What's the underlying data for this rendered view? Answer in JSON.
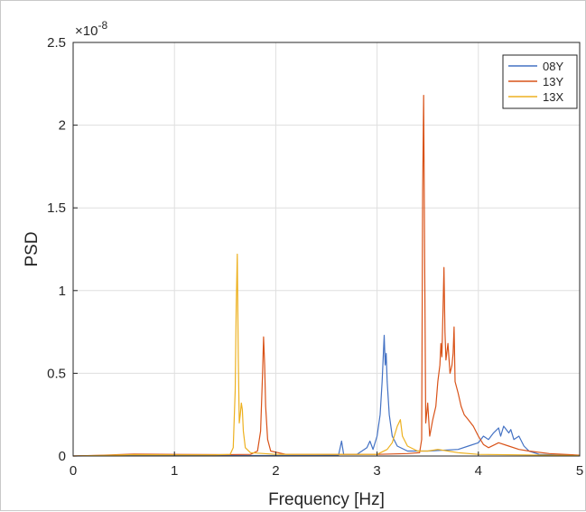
{
  "chart_data": {
    "type": "line",
    "title": "",
    "xlabel": "Frequency [Hz]",
    "ylabel": "PSD",
    "exponent_base": "×10",
    "exponent_power": "-8",
    "xlim": [
      0,
      5
    ],
    "ylim": [
      0,
      2.5
    ],
    "x_ticks": [
      "0",
      "1",
      "2",
      "3",
      "4",
      "5"
    ],
    "y_ticks": [
      "0",
      "0.5",
      "1",
      "1.5",
      "2",
      "2.5"
    ],
    "grid": true,
    "legend_position": "top-right",
    "series": [
      {
        "name": "08Y",
        "color": "#4472c4",
        "points": [
          [
            0.0,
            0.0
          ],
          [
            0.3,
            0.002
          ],
          [
            0.6,
            0.004
          ],
          [
            1.0,
            0.003
          ],
          [
            1.5,
            0.003
          ],
          [
            2.0,
            0.003
          ],
          [
            2.4,
            0.004
          ],
          [
            2.62,
            0.006
          ],
          [
            2.65,
            0.09
          ],
          [
            2.67,
            0.01
          ],
          [
            2.8,
            0.01
          ],
          [
            2.9,
            0.05
          ],
          [
            2.93,
            0.09
          ],
          [
            2.96,
            0.04
          ],
          [
            3.0,
            0.12
          ],
          [
            3.03,
            0.25
          ],
          [
            3.05,
            0.45
          ],
          [
            3.07,
            0.73
          ],
          [
            3.08,
            0.55
          ],
          [
            3.09,
            0.62
          ],
          [
            3.1,
            0.45
          ],
          [
            3.12,
            0.25
          ],
          [
            3.15,
            0.12
          ],
          [
            3.2,
            0.06
          ],
          [
            3.3,
            0.03
          ],
          [
            3.5,
            0.03
          ],
          [
            3.8,
            0.04
          ],
          [
            3.9,
            0.06
          ],
          [
            4.0,
            0.08
          ],
          [
            4.05,
            0.12
          ],
          [
            4.1,
            0.1
          ],
          [
            4.15,
            0.14
          ],
          [
            4.2,
            0.17
          ],
          [
            4.22,
            0.12
          ],
          [
            4.25,
            0.18
          ],
          [
            4.3,
            0.14
          ],
          [
            4.32,
            0.16
          ],
          [
            4.35,
            0.1
          ],
          [
            4.4,
            0.12
          ],
          [
            4.45,
            0.06
          ],
          [
            4.5,
            0.03
          ],
          [
            4.6,
            0.01
          ],
          [
            5.0,
            0.003
          ]
        ]
      },
      {
        "name": "13Y",
        "color": "#d95319",
        "points": [
          [
            0.0,
            0.0
          ],
          [
            0.3,
            0.005
          ],
          [
            0.6,
            0.012
          ],
          [
            1.0,
            0.01
          ],
          [
            1.5,
            0.008
          ],
          [
            1.75,
            0.01
          ],
          [
            1.82,
            0.03
          ],
          [
            1.85,
            0.15
          ],
          [
            1.87,
            0.5
          ],
          [
            1.88,
            0.72
          ],
          [
            1.89,
            0.55
          ],
          [
            1.9,
            0.3
          ],
          [
            1.92,
            0.1
          ],
          [
            1.95,
            0.03
          ],
          [
            2.1,
            0.01
          ],
          [
            2.5,
            0.01
          ],
          [
            3.0,
            0.01
          ],
          [
            3.3,
            0.015
          ],
          [
            3.42,
            0.02
          ],
          [
            3.44,
            0.1
          ],
          [
            3.45,
            1.6
          ],
          [
            3.46,
            2.18
          ],
          [
            3.47,
            1.2
          ],
          [
            3.48,
            0.2
          ],
          [
            3.5,
            0.32
          ],
          [
            3.52,
            0.12
          ],
          [
            3.55,
            0.22
          ],
          [
            3.58,
            0.3
          ],
          [
            3.6,
            0.45
          ],
          [
            3.62,
            0.55
          ],
          [
            3.63,
            0.68
          ],
          [
            3.64,
            0.6
          ],
          [
            3.65,
            0.85
          ],
          [
            3.66,
            1.14
          ],
          [
            3.67,
            0.75
          ],
          [
            3.68,
            0.58
          ],
          [
            3.7,
            0.68
          ],
          [
            3.72,
            0.5
          ],
          [
            3.74,
            0.55
          ],
          [
            3.75,
            0.62
          ],
          [
            3.76,
            0.78
          ],
          [
            3.77,
            0.45
          ],
          [
            3.8,
            0.38
          ],
          [
            3.83,
            0.3
          ],
          [
            3.86,
            0.25
          ],
          [
            3.9,
            0.22
          ],
          [
            3.95,
            0.18
          ],
          [
            4.0,
            0.12
          ],
          [
            4.05,
            0.07
          ],
          [
            4.1,
            0.05
          ],
          [
            4.2,
            0.08
          ],
          [
            4.3,
            0.06
          ],
          [
            4.4,
            0.04
          ],
          [
            4.5,
            0.03
          ],
          [
            4.7,
            0.015
          ],
          [
            5.0,
            0.005
          ]
        ]
      },
      {
        "name": "13X",
        "color": "#edb120",
        "points": [
          [
            0.0,
            0.0
          ],
          [
            0.3,
            0.004
          ],
          [
            0.6,
            0.008
          ],
          [
            1.0,
            0.007
          ],
          [
            1.4,
            0.007
          ],
          [
            1.55,
            0.01
          ],
          [
            1.58,
            0.05
          ],
          [
            1.6,
            0.4
          ],
          [
            1.61,
            0.9
          ],
          [
            1.62,
            1.22
          ],
          [
            1.63,
            0.6
          ],
          [
            1.64,
            0.2
          ],
          [
            1.65,
            0.25
          ],
          [
            1.66,
            0.32
          ],
          [
            1.67,
            0.28
          ],
          [
            1.68,
            0.15
          ],
          [
            1.7,
            0.05
          ],
          [
            1.75,
            0.02
          ],
          [
            2.0,
            0.01
          ],
          [
            2.5,
            0.01
          ],
          [
            3.0,
            0.01
          ],
          [
            3.1,
            0.04
          ],
          [
            3.15,
            0.08
          ],
          [
            3.2,
            0.18
          ],
          [
            3.23,
            0.22
          ],
          [
            3.25,
            0.12
          ],
          [
            3.3,
            0.06
          ],
          [
            3.4,
            0.03
          ],
          [
            3.5,
            0.03
          ],
          [
            3.6,
            0.04
          ],
          [
            3.7,
            0.03
          ],
          [
            3.8,
            0.02
          ],
          [
            4.0,
            0.01
          ],
          [
            5.0,
            0.003
          ]
        ]
      }
    ]
  }
}
